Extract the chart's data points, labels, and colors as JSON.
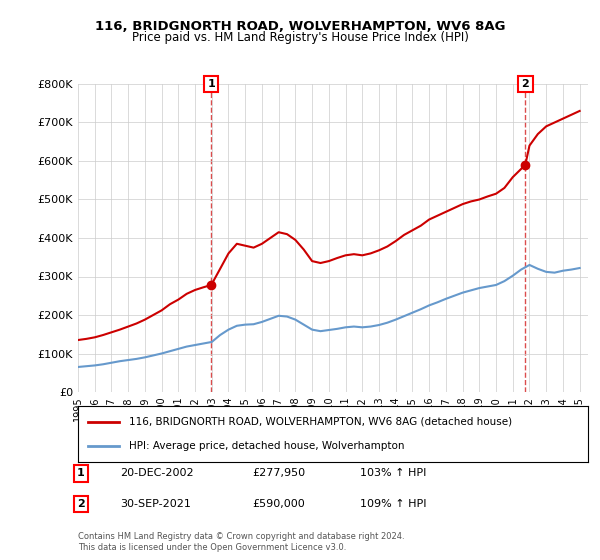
{
  "title": "116, BRIDGNORTH ROAD, WOLVERHAMPTON, WV6 8AG",
  "subtitle": "Price paid vs. HM Land Registry's House Price Index (HPI)",
  "legend_line1": "116, BRIDGNORTH ROAD, WOLVERHAMPTON, WV6 8AG (detached house)",
  "legend_line2": "HPI: Average price, detached house, Wolverhampton",
  "annotation1_label": "1",
  "annotation1_date": "20-DEC-2002",
  "annotation1_price": "£277,950",
  "annotation1_hpi": "103% ↑ HPI",
  "annotation2_label": "2",
  "annotation2_date": "30-SEP-2021",
  "annotation2_price": "£590,000",
  "annotation2_hpi": "109% ↑ HPI",
  "footer": "Contains HM Land Registry data © Crown copyright and database right 2024.\nThis data is licensed under the Open Government Licence v3.0.",
  "red_color": "#cc0000",
  "blue_color": "#6699cc",
  "background_color": "#ffffff",
  "grid_color": "#cccccc",
  "ylim": [
    0,
    800000
  ],
  "yticks": [
    0,
    100000,
    200000,
    300000,
    400000,
    500000,
    600000,
    700000,
    800000
  ],
  "ytick_labels": [
    "£0",
    "£100K",
    "£200K",
    "£300K",
    "£400K",
    "£500K",
    "£600K",
    "£700K",
    "£800K"
  ],
  "xlim_start": 1995.0,
  "xlim_end": 2025.5,
  "xticks": [
    1995,
    1996,
    1997,
    1998,
    1999,
    2000,
    2001,
    2002,
    2003,
    2004,
    2005,
    2006,
    2007,
    2008,
    2009,
    2010,
    2011,
    2012,
    2013,
    2014,
    2015,
    2016,
    2017,
    2018,
    2019,
    2020,
    2021,
    2022,
    2023,
    2024,
    2025
  ],
  "sale1_x": 2002.97,
  "sale1_y": 277950,
  "sale2_x": 2021.75,
  "sale2_y": 590000,
  "red_x": [
    1995.0,
    1995.5,
    1996.0,
    1996.5,
    1997.0,
    1997.5,
    1998.0,
    1998.5,
    1999.0,
    1999.5,
    2000.0,
    2000.5,
    2001.0,
    2001.5,
    2002.0,
    2002.5,
    2002.97,
    2003.5,
    2004.0,
    2004.5,
    2005.0,
    2005.5,
    2006.0,
    2006.5,
    2007.0,
    2007.5,
    2008.0,
    2008.5,
    2009.0,
    2009.5,
    2010.0,
    2010.5,
    2011.0,
    2011.5,
    2012.0,
    2012.5,
    2013.0,
    2013.5,
    2014.0,
    2014.5,
    2015.0,
    2015.5,
    2016.0,
    2016.5,
    2017.0,
    2017.5,
    2018.0,
    2018.5,
    2019.0,
    2019.5,
    2020.0,
    2020.5,
    2021.0,
    2021.75,
    2022.0,
    2022.5,
    2023.0,
    2023.5,
    2024.0,
    2024.5,
    2025.0
  ],
  "red_y": [
    135000,
    138000,
    142000,
    148000,
    155000,
    162000,
    170000,
    178000,
    188000,
    200000,
    212000,
    228000,
    240000,
    255000,
    265000,
    272000,
    277950,
    320000,
    360000,
    385000,
    380000,
    375000,
    385000,
    400000,
    415000,
    410000,
    395000,
    370000,
    340000,
    335000,
    340000,
    348000,
    355000,
    358000,
    355000,
    360000,
    368000,
    378000,
    392000,
    408000,
    420000,
    432000,
    448000,
    458000,
    468000,
    478000,
    488000,
    495000,
    500000,
    508000,
    515000,
    530000,
    558000,
    590000,
    640000,
    670000,
    690000,
    700000,
    710000,
    720000,
    730000
  ],
  "blue_x": [
    1995.0,
    1995.5,
    1996.0,
    1996.5,
    1997.0,
    1997.5,
    1998.0,
    1998.5,
    1999.0,
    1999.5,
    2000.0,
    2000.5,
    2001.0,
    2001.5,
    2002.0,
    2002.5,
    2003.0,
    2003.5,
    2004.0,
    2004.5,
    2005.0,
    2005.5,
    2006.0,
    2006.5,
    2007.0,
    2007.5,
    2008.0,
    2008.5,
    2009.0,
    2009.5,
    2010.0,
    2010.5,
    2011.0,
    2011.5,
    2012.0,
    2012.5,
    2013.0,
    2013.5,
    2014.0,
    2014.5,
    2015.0,
    2015.5,
    2016.0,
    2016.5,
    2017.0,
    2017.5,
    2018.0,
    2018.5,
    2019.0,
    2019.5,
    2020.0,
    2020.5,
    2021.0,
    2021.5,
    2022.0,
    2022.5,
    2023.0,
    2023.5,
    2024.0,
    2024.5,
    2025.0
  ],
  "blue_y": [
    65000,
    67000,
    69000,
    72000,
    76000,
    80000,
    83000,
    86000,
    90000,
    95000,
    100000,
    106000,
    112000,
    118000,
    122000,
    126000,
    130000,
    148000,
    162000,
    172000,
    175000,
    176000,
    182000,
    190000,
    198000,
    196000,
    188000,
    175000,
    162000,
    158000,
    161000,
    164000,
    168000,
    170000,
    168000,
    170000,
    174000,
    180000,
    188000,
    197000,
    206000,
    215000,
    225000,
    233000,
    242000,
    250000,
    258000,
    264000,
    270000,
    274000,
    278000,
    288000,
    302000,
    318000,
    330000,
    320000,
    312000,
    310000,
    315000,
    318000,
    322000
  ]
}
